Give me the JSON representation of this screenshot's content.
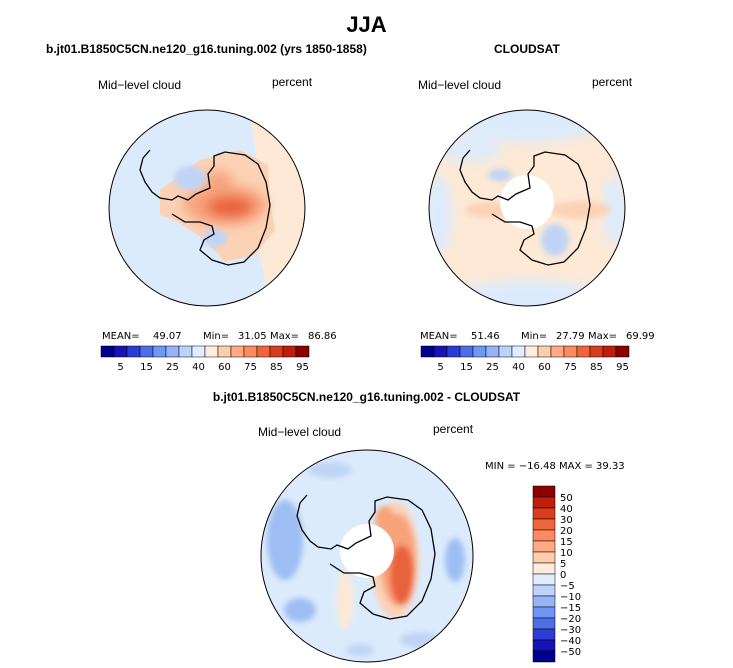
{
  "title": "JJA",
  "panels": [
    {
      "title": "b.jt01.B1850C5CN.ne120_g16.tuning.002 (yrs 1850-1858)",
      "left_label": "Mid−level cloud",
      "right_label": "percent",
      "stats": {
        "mean_label": "MEAN=",
        "mean": "49.07",
        "min_label": "Min=",
        "min": "31.05",
        "max_label": "Max=",
        "max": "86.86"
      }
    },
    {
      "title": "CLOUDSAT",
      "left_label": "Mid−level cloud",
      "right_label": "percent",
      "stats": {
        "mean_label": "MEAN=",
        "mean": "51.46",
        "min_label": "Min=",
        "min": "27.79",
        "max_label": "Max=",
        "max": "69.99"
      }
    },
    {
      "title": "b.jt01.B1850C5CN.ne120_g16.tuning.002 - CLOUDSAT",
      "left_label": "Mid−level cloud",
      "right_label": "percent",
      "stats_text": "MIN = −16.48 MAX =  39.33"
    }
  ],
  "chart_data": [
    {
      "type": "heatmap",
      "title": "b.jt01.B1850C5CN.ne120_g16.tuning.002 (yrs 1850-1858)",
      "field": "Mid-level cloud",
      "units": "percent",
      "projection": "south polar stereographic",
      "mean": 49.07,
      "min": 31.05,
      "max": 86.86,
      "colorbar_levels": [
        5,
        15,
        25,
        40,
        60,
        75,
        85,
        95
      ],
      "colorbar_colors": [
        "#00008f",
        "#1414b4",
        "#2d3cd2",
        "#4f6ee6",
        "#6e96f2",
        "#96b4f8",
        "#bed2fc",
        "#e1ecff",
        "#ffecdc",
        "#ffcdaa",
        "#ffaa82",
        "#ff8a5f",
        "#f0643c",
        "#dc3c1e",
        "#be1e0a",
        "#8c0000"
      ]
    },
    {
      "type": "heatmap",
      "title": "CLOUDSAT",
      "field": "Mid-level cloud",
      "units": "percent",
      "projection": "south polar stereographic",
      "mean": 51.46,
      "min": 27.79,
      "max": 69.99,
      "colorbar_levels": [
        5,
        15,
        25,
        40,
        60,
        75,
        85,
        95
      ],
      "colorbar_colors": [
        "#00008f",
        "#1414b4",
        "#2d3cd2",
        "#4f6ee6",
        "#6e96f2",
        "#96b4f8",
        "#bed2fc",
        "#e1ecff",
        "#ffecdc",
        "#ffcdaa",
        "#ffaa82",
        "#ff8a5f",
        "#f0643c",
        "#dc3c1e",
        "#be1e0a",
        "#8c0000"
      ]
    },
    {
      "type": "heatmap",
      "title": "b.jt01.B1850C5CN.ne120_g16.tuning.002 - CLOUDSAT",
      "field": "Mid-level cloud",
      "units": "percent",
      "projection": "south polar stereographic",
      "min": -16.48,
      "max": 39.33,
      "colorbar_levels": [
        "50",
        "40",
        "30",
        "20",
        "15",
        "10",
        "5",
        "0",
        "−5",
        "−10",
        "−15",
        "−20",
        "−30",
        "−40",
        "−50"
      ],
      "colorbar_colors": [
        "#8c0000",
        "#be1e0a",
        "#dc3c1e",
        "#f0643c",
        "#ff8a5f",
        "#ffaa82",
        "#ffcdaa",
        "#ffecdc",
        "#e1ecff",
        "#bed2fc",
        "#96b4f8",
        "#6e96f2",
        "#4f6ee6",
        "#2d3cd2",
        "#1414b4",
        "#00008f"
      ]
    }
  ]
}
